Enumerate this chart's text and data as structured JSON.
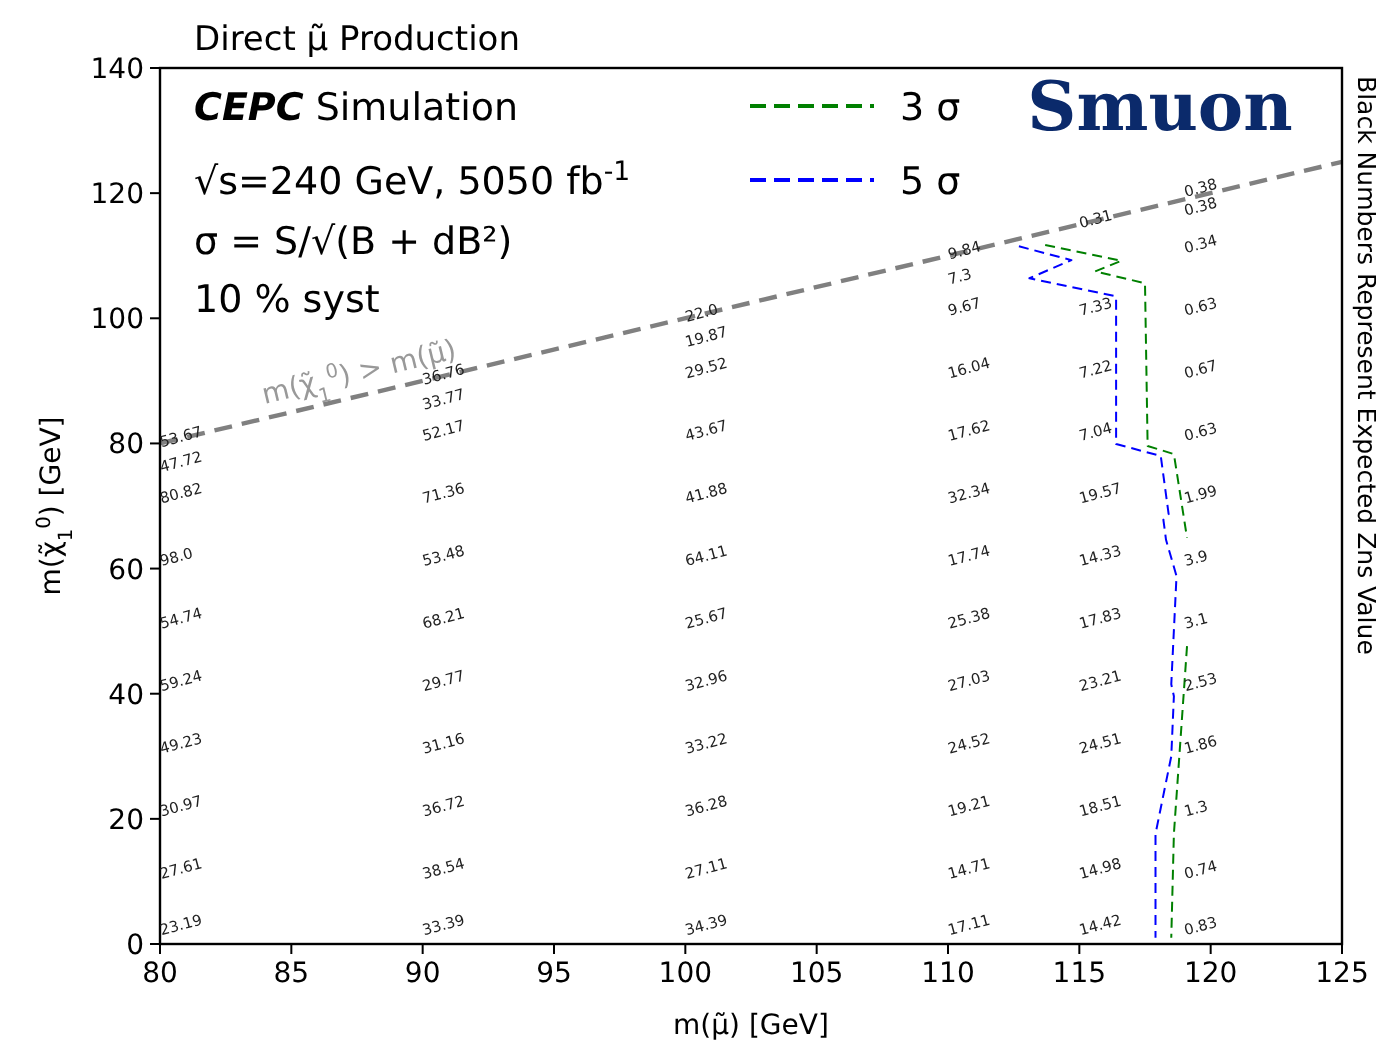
{
  "chart_data": {
    "type": "line",
    "title": "Direct μ̃ Production",
    "xlabel": "m(μ̃) [GeV]",
    "ylabel": "m(χ̃$_{1}$$^{0}$) [GeV]",
    "y2label": "Black Numbers Represent Expected Zns Value",
    "xlim": [
      80,
      125
    ],
    "xticks": [
      80,
      85,
      90,
      95,
      100,
      105,
      110,
      115,
      120,
      125
    ],
    "ylim": [
      0,
      140
    ],
    "yticks": [
      0,
      20,
      40,
      60,
      80,
      100,
      120,
      140
    ],
    "grid": false,
    "legend": "top",
    "marker": "none",
    "line_style": "dashed",
    "series": [
      {
        "name": "3 σ",
        "color": "#008000",
        "x": [
          113.7,
          116.6,
          115.6,
          117.5,
          117.6,
          118.6,
          119.1,
          null,
          119.1,
          118.6,
          118.5
        ],
        "values": [
          111.7,
          109.2,
          107.5,
          105.6,
          79.6,
          78.3,
          64.9,
          null,
          47.6,
          17.6,
          1
        ]
      },
      {
        "name": "5 σ",
        "color": "#0000ff",
        "x": [
          112.7,
          114.7,
          113.1,
          116.4,
          116.4,
          118.1,
          118.4,
          118.2,
          118.3,
          118.7,
          118.5,
          118.6,
          118.5,
          117.9,
          117.9
        ],
        "values": [
          111.5,
          109.3,
          106.4,
          103.5,
          79.9,
          78.0,
          68.7,
          67.8,
          64.6,
          58.8,
          41.5,
          39.6,
          30.0,
          17.6,
          1
        ]
      },
      {
        "color": "#808080",
        "x": [
          80,
          125
        ],
        "values": [
          80,
          125
        ]
      }
    ],
    "annotations": [
      "CEPC Simulation",
      "√s=240 GeV, 5050 fb$^{-1}$",
      "σ = S/√(B + dB²)",
      "10 % syst",
      "Smuon",
      {
        "text": "m(χ̃$_{1}$$^{0}$) > m(μ̃)",
        "x": 84,
        "y": 86
      },
      "23.19",
      "27.61",
      "30.97",
      "49.23",
      "59.24",
      "54.74",
      "98.0",
      "80.82",
      "47.72",
      "53.67",
      "33.39",
      "38.54",
      "36.72",
      "31.16",
      "29.77",
      "68.21",
      "53.48",
      "71.36",
      "52.17",
      "33.77",
      "36.76",
      "34.39",
      "27.11",
      "36.28",
      "33.22",
      "32.96",
      "25.67",
      "64.11",
      "41.88",
      "43.67",
      "29.52",
      "19.87",
      "22.0",
      "17.11",
      "14.71",
      "19.21",
      "24.52",
      "27.03",
      "25.38",
      "17.74",
      "32.34",
      "17.62",
      "16.04",
      "9.67",
      "7.3",
      "9.84",
      "14.42",
      "14.98",
      "18.51",
      "24.51",
      "23.21",
      "17.83",
      "14.33",
      "19.57",
      "7.04",
      "7.22",
      "7.33",
      "0.31",
      "0.83",
      "0.74",
      "1.3",
      "1.86",
      "2.53",
      "3.1",
      "3.9",
      "1.99",
      "0.63",
      "0.67",
      "0.63",
      "0.34",
      "0.38",
      "0.38"
    ]
  }
}
